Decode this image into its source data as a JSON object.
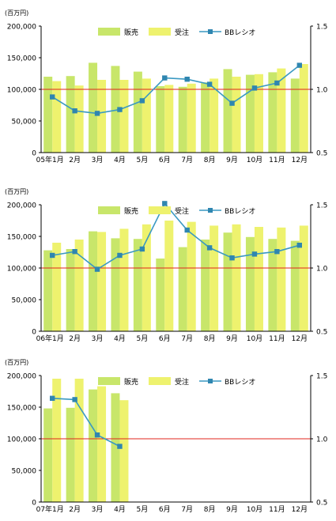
{
  "colors": {
    "sales": "#c8e66a",
    "orders": "#eef26e",
    "ratio_line": "#3a99c2",
    "ratio_marker": "#2f86b0",
    "reference_line": "#e0261c",
    "axis": "#000000"
  },
  "chart_data": [
    {
      "type": "bar",
      "unit_label": "(百万円)",
      "legend": {
        "sales": "販売",
        "orders": "受注",
        "ratio": "BBレシオ"
      },
      "categories": [
        "05年1月",
        "2月",
        "3月",
        "4月",
        "5月",
        "6月",
        "7月",
        "8月",
        "9月",
        "10月",
        "11月",
        "12月"
      ],
      "series": [
        {
          "name": "販売",
          "axis": "left",
          "values": [
            120000,
            121000,
            142000,
            137000,
            128000,
            105000,
            104000,
            111000,
            132000,
            123000,
            127000,
            117000
          ]
        },
        {
          "name": "受注",
          "axis": "left",
          "values": [
            113000,
            106000,
            115000,
            115000,
            117000,
            107000,
            109000,
            117000,
            120000,
            124000,
            133000,
            140000
          ]
        },
        {
          "name": "BBレシオ",
          "axis": "right",
          "type": "line",
          "values": [
            0.94,
            0.83,
            0.81,
            0.84,
            0.91,
            1.09,
            1.08,
            1.04,
            0.89,
            1.01,
            1.05,
            1.19
          ]
        }
      ],
      "y_left": {
        "min": 0,
        "max": 200000,
        "ticks": [
          "0",
          "50,000",
          "100,000",
          "150,000",
          "200,000"
        ]
      },
      "y_right": {
        "min": 0.5,
        "max": 1.5,
        "ticks": [
          "0.5",
          "1.0",
          "1.5"
        ]
      },
      "reference_value": 1.0,
      "legend_position": "top-center"
    },
    {
      "type": "bar",
      "unit_label": "(百万円)",
      "legend": {
        "sales": "販売",
        "orders": "受注",
        "ratio": "BBレシオ"
      },
      "categories": [
        "06年1月",
        "2月",
        "3月",
        "4月",
        "5月",
        "6月",
        "7月",
        "8月",
        "9月",
        "10月",
        "11月",
        "12月"
      ],
      "series": [
        {
          "name": "販売",
          "axis": "left",
          "values": [
            128000,
            130000,
            158000,
            147000,
            146000,
            115000,
            133000,
            145000,
            156000,
            149000,
            146000,
            143000
          ]
        },
        {
          "name": "受注",
          "axis": "left",
          "values": [
            140000,
            145000,
            157000,
            162000,
            169000,
            175000,
            173000,
            167000,
            169000,
            165000,
            164000,
            167000
          ]
        },
        {
          "name": "BBレシオ",
          "axis": "right",
          "type": "line",
          "values": [
            1.1,
            1.13,
            0.99,
            1.1,
            1.15,
            1.51,
            1.3,
            1.16,
            1.08,
            1.11,
            1.13,
            1.18
          ]
        }
      ],
      "y_left": {
        "min": 0,
        "max": 200000,
        "ticks": [
          "0",
          "50,000",
          "100,000",
          "150,000",
          "200,000"
        ]
      },
      "y_right": {
        "min": 0.5,
        "max": 1.5,
        "ticks": [
          "0.5",
          "1.0",
          "1.5"
        ]
      },
      "reference_value": 1.0,
      "legend_position": "top-center"
    },
    {
      "type": "bar",
      "unit_label": "(百万円)",
      "legend": {
        "sales": "販売",
        "orders": "受注",
        "ratio": "BBレシオ"
      },
      "categories": [
        "07年1月",
        "2月",
        "3月",
        "4月",
        "5月",
        "6月",
        "7月",
        "8月",
        "9月",
        "10月",
        "11月",
        "12月"
      ],
      "series": [
        {
          "name": "販売",
          "axis": "left",
          "values": [
            148000,
            149000,
            178000,
            172000,
            null,
            null,
            null,
            null,
            null,
            null,
            null,
            null
          ]
        },
        {
          "name": "受注",
          "axis": "left",
          "values": [
            195000,
            195000,
            183000,
            161000,
            null,
            null,
            null,
            null,
            null,
            null,
            null,
            null
          ]
        },
        {
          "name": "BBレシオ",
          "axis": "right",
          "type": "line",
          "values": [
            1.32,
            1.31,
            1.03,
            0.94,
            null,
            null,
            null,
            null,
            null,
            null,
            null,
            null
          ]
        }
      ],
      "y_left": {
        "min": 0,
        "max": 200000,
        "ticks": [
          "0",
          "50,000",
          "100,000",
          "150,000",
          "200,000"
        ]
      },
      "y_right": {
        "min": 0.5,
        "max": 1.5,
        "ticks": [
          "0.5",
          "1.0",
          "1.5"
        ]
      },
      "reference_value": 1.0,
      "legend_position": "top-center"
    }
  ]
}
